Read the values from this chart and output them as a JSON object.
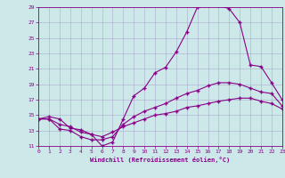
{
  "xlabel": "Windchill (Refroidissement éolien,°C)",
  "bg_color": "#cce8e8",
  "grid_color": "#aaaacc",
  "line_color": "#880088",
  "xlim": [
    0,
    23
  ],
  "ylim": [
    11,
    29
  ],
  "xticks": [
    0,
    1,
    2,
    3,
    4,
    5,
    6,
    7,
    8,
    9,
    10,
    11,
    12,
    13,
    14,
    15,
    16,
    17,
    18,
    19,
    20,
    21,
    22,
    23
  ],
  "yticks": [
    11,
    13,
    15,
    17,
    19,
    21,
    23,
    25,
    27,
    29
  ],
  "line1_x": [
    0,
    1,
    2,
    3,
    4,
    5,
    6,
    7,
    8,
    9,
    10,
    11,
    12,
    13,
    14,
    15,
    16,
    17,
    18,
    19,
    20,
    21,
    22,
    23
  ],
  "line1_y": [
    14.5,
    14.8,
    14.5,
    13.3,
    13.1,
    12.5,
    11.0,
    11.5,
    14.5,
    17.5,
    18.5,
    20.5,
    21.2,
    23.2,
    25.8,
    29.0,
    29.2,
    29.2,
    28.8,
    27.0,
    21.5,
    21.3,
    19.2,
    17.0
  ],
  "line2_x": [
    0,
    1,
    2,
    3,
    4,
    5,
    6,
    7,
    8,
    9,
    10,
    11,
    12,
    13,
    14,
    15,
    16,
    17,
    18,
    19,
    20,
    21,
    22,
    23
  ],
  "line2_y": [
    14.5,
    14.5,
    13.2,
    13.0,
    12.2,
    11.8,
    11.8,
    12.2,
    13.8,
    14.8,
    15.5,
    16.0,
    16.5,
    17.2,
    17.8,
    18.2,
    18.8,
    19.2,
    19.2,
    19.0,
    18.5,
    18.0,
    17.8,
    16.2
  ],
  "line3_x": [
    0,
    1,
    2,
    3,
    4,
    5,
    6,
    7,
    8,
    9,
    10,
    11,
    12,
    13,
    14,
    15,
    16,
    17,
    18,
    19,
    20,
    21,
    22,
    23
  ],
  "line3_y": [
    14.5,
    14.5,
    13.8,
    13.5,
    12.8,
    12.5,
    12.2,
    12.8,
    13.5,
    14.0,
    14.5,
    15.0,
    15.2,
    15.5,
    16.0,
    16.2,
    16.5,
    16.8,
    17.0,
    17.2,
    17.2,
    16.8,
    16.5,
    15.8
  ]
}
